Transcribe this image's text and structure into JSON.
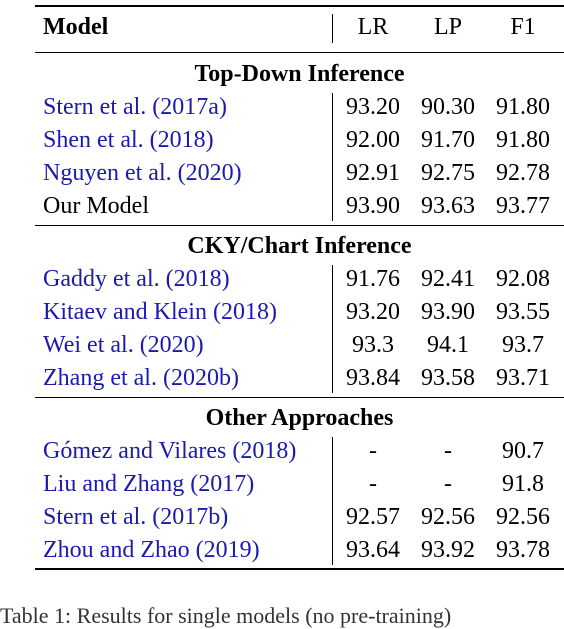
{
  "header": {
    "model": "Model",
    "lr": "LR",
    "lp": "LP",
    "f1": "F1"
  },
  "sections": [
    {
      "title": "Top-Down Inference",
      "rows": [
        {
          "name": "Stern et al. (2017a)",
          "lr": "93.20",
          "lp": "90.30",
          "f1": "91.80",
          "cited": true
        },
        {
          "name": "Shen et al. (2018)",
          "lr": "92.00",
          "lp": "91.70",
          "f1": "91.80",
          "cited": true
        },
        {
          "name": "Nguyen et al. (2020)",
          "lr": "92.91",
          "lp": "92.75",
          "f1": "92.78",
          "cited": true
        },
        {
          "name": "Our Model",
          "lr": "93.90",
          "lp": "93.63",
          "f1": "93.77",
          "cited": false
        }
      ]
    },
    {
      "title": "CKY/Chart Inference",
      "rows": [
        {
          "name": "Gaddy et al. (2018)",
          "lr": "91.76",
          "lp": "92.41",
          "f1": "92.08",
          "cited": true
        },
        {
          "name": "Kitaev and Klein (2018)",
          "lr": "93.20",
          "lp": "93.90",
          "f1": "93.55",
          "cited": true
        },
        {
          "name": "Wei et al. (2020)",
          "lr": "93.3",
          "lp": "94.1",
          "f1": "93.7",
          "cited": true
        },
        {
          "name": "Zhang et al. (2020b)",
          "lr": "93.84",
          "lp": "93.58",
          "f1": "93.71",
          "cited": true
        }
      ]
    },
    {
      "title": "Other Approaches",
      "rows": [
        {
          "name": "Gómez and Vilares (2018)",
          "lr": "-",
          "lp": "-",
          "f1": "90.7",
          "cited": true
        },
        {
          "name": "Liu and Zhang (2017)",
          "lr": "-",
          "lp": "-",
          "f1": "91.8",
          "cited": true
        },
        {
          "name": "Stern et al. (2017b)",
          "lr": "92.57",
          "lp": "92.56",
          "f1": "92.56",
          "cited": true
        },
        {
          "name": "Zhou and Zhao (2019)",
          "lr": "93.64",
          "lp": "93.92",
          "f1": "93.78",
          "cited": true
        }
      ]
    }
  ],
  "caption": "Table 1: Results for single models (no pre-training)"
}
